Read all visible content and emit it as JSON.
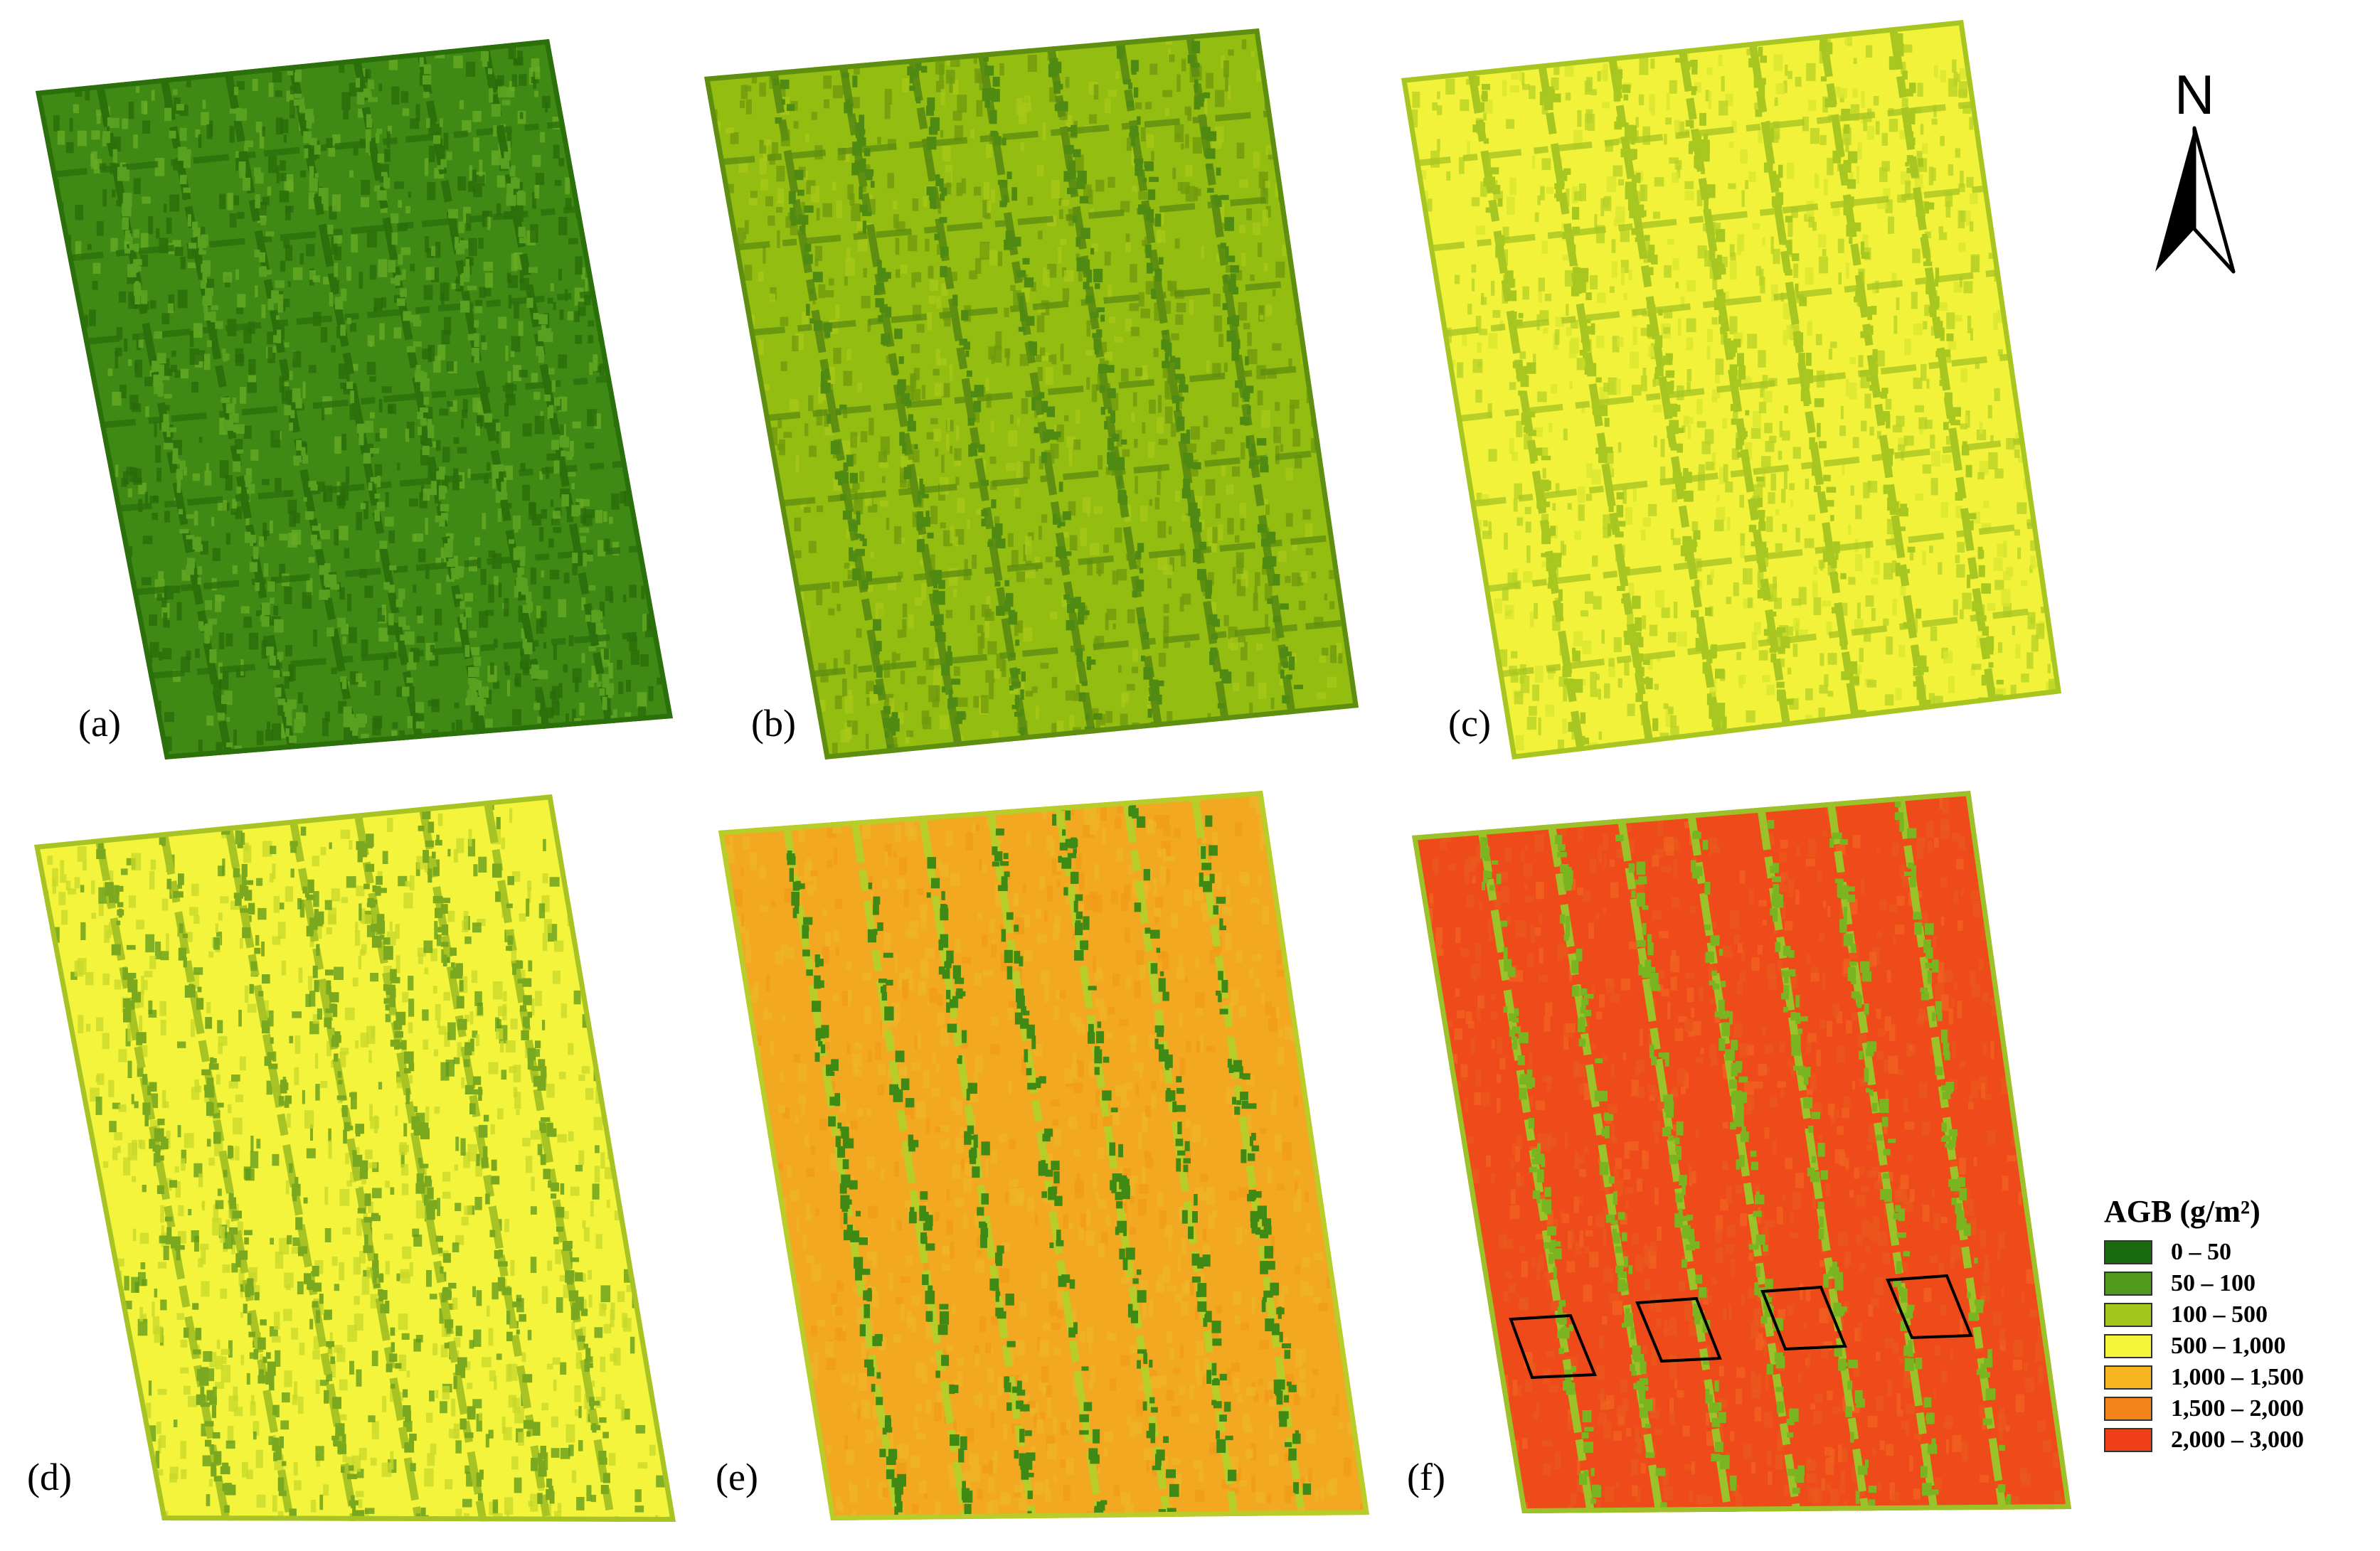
{
  "panels": [
    {
      "label": "(a)",
      "base": "#3f8a14",
      "dark": "#2a6a0a",
      "speck": "#58a020",
      "stripes": "#2c700c",
      "specks2": "#6aac26"
    },
    {
      "label": "(b)",
      "base": "#94bd12",
      "dark": "#6f9a0c",
      "speck": "#4f8a12",
      "stripes": "#5f8f10",
      "specks2": "#a8c818"
    },
    {
      "label": "(c)",
      "base": "#f2f23a",
      "dark": "#b6d026",
      "speck": "#a8c820",
      "stripes": "#a8c622",
      "specks2": "#d8e630"
    },
    {
      "label": "(d)",
      "base": "#f4f43c",
      "dark": "#c8d82a",
      "speck": "#7aa81e",
      "stripes": "#a8c424",
      "specks2": "#5e9a1a"
    },
    {
      "label": "(e)",
      "base": "#f3a821",
      "dark": "#eeb52a",
      "speck": "#3f8a14",
      "stripes": "#b8cc2a",
      "specks2": "#f09b1a"
    },
    {
      "label": "(f)",
      "base": "#ee4a1a",
      "dark": "#ea5a1e",
      "speck": "#7ab420",
      "stripes": "#9cc22a",
      "specks2": "#f06420"
    }
  ],
  "north": {
    "label": "N",
    "icon": "north-arrow-icon"
  },
  "legend": {
    "title": "AGB (g/m²)",
    "items": [
      {
        "label": "0 – 50",
        "color": "#1a6a10"
      },
      {
        "label": "50 – 100",
        "color": "#4f9a1c"
      },
      {
        "label": "100 – 500",
        "color": "#a5c61c"
      },
      {
        "label": "500 – 1,000",
        "color": "#f5f53c"
      },
      {
        "label": "1,000 – 1,500",
        "color": "#f7b51f"
      },
      {
        "label": "1,500 – 2,000",
        "color": "#f38419"
      },
      {
        "label": "2,000 – 3,000",
        "color": "#ee3e1a"
      }
    ]
  }
}
